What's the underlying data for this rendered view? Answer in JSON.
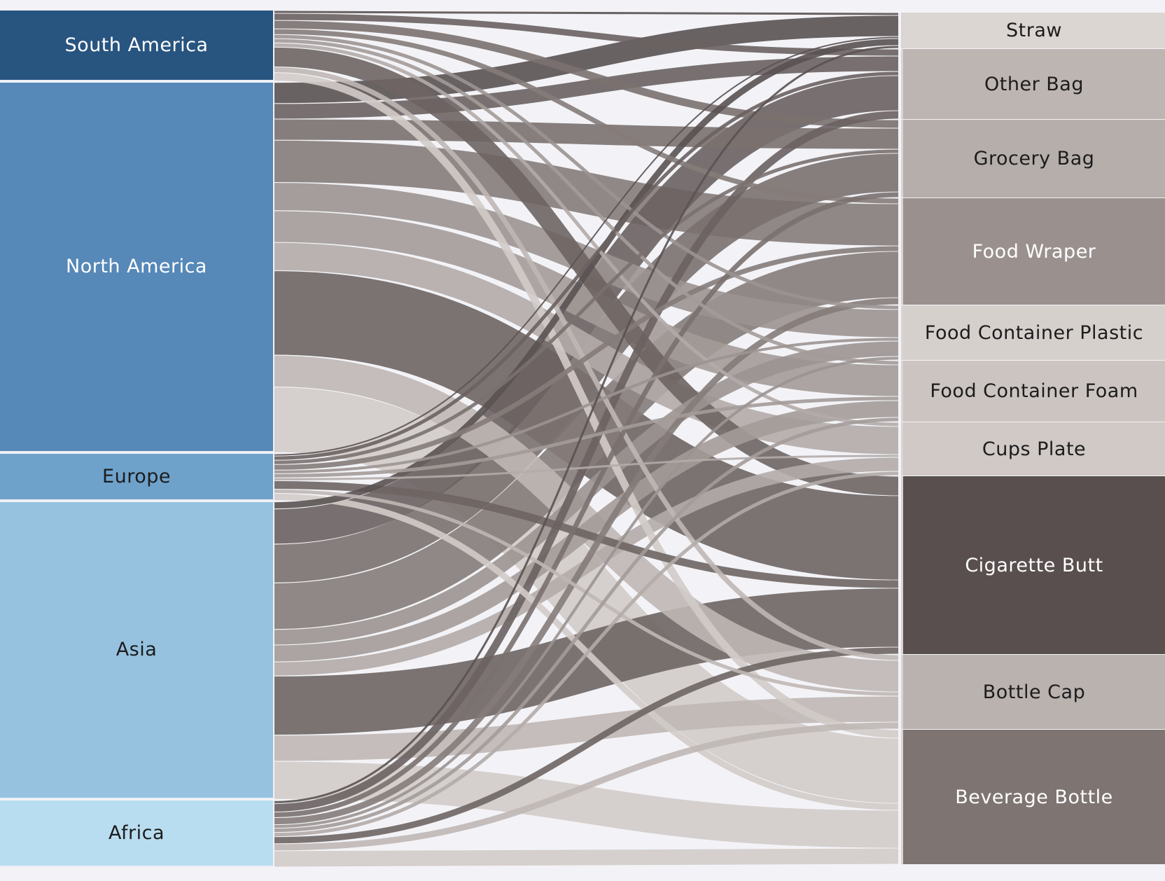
{
  "chart_data": {
    "type": "sankey",
    "sources": [
      {
        "name": "South America",
        "color": "#285480",
        "text_color": "#ffffff"
      },
      {
        "name": "North America",
        "color": "#5688b8",
        "text_color": "#ffffff"
      },
      {
        "name": "Europe",
        "color": "#6ea2cb",
        "text_color": "#1c1c1c"
      },
      {
        "name": "Asia",
        "color": "#96c2e0",
        "text_color": "#1c1c1c"
      },
      {
        "name": "Africa",
        "color": "#b9ddf0",
        "text_color": "#1c1c1c"
      }
    ],
    "targets": [
      {
        "name": "Straw",
        "color": "#dcd6d3",
        "text_color": "#1c1c1c",
        "link_color": "#5a5252"
      },
      {
        "name": "Other Bag",
        "color": "#bdb5b2",
        "text_color": "#1c1c1c",
        "link_color": "#6a6260"
      },
      {
        "name": "Grocery Bag",
        "color": "#b5aeab",
        "text_color": "#1c1c1c",
        "link_color": "#7a716f"
      },
      {
        "name": "Food Wraper",
        "color": "#9a918f",
        "text_color": "#ffffff",
        "link_color": "#857c79"
      },
      {
        "name": "Food Container Plastic",
        "color": "#d6d0cd",
        "text_color": "#1c1c1c",
        "link_color": "#9b9391"
      },
      {
        "name": "Food  Container Foam",
        "color": "#cbc4c1",
        "text_color": "#1c1c1c",
        "link_color": "#a39b98"
      },
      {
        "name": "Cups Plate",
        "color": "#d0c9c6",
        "text_color": "#1c1c1c",
        "link_color": "#b3aba8"
      },
      {
        "name": "Cigarette Butt",
        "color": "#594f4e",
        "text_color": "#ffffff",
        "link_color": "#6e6563"
      },
      {
        "name": "Bottle Cap",
        "color": "#bab2af",
        "text_color": "#1c1c1c",
        "link_color": "#bfb7b4"
      },
      {
        "name": "Beverage Bottle",
        "color": "#7e7471",
        "text_color": "#ffffff",
        "link_color": "#d2cbc8"
      }
    ],
    "flows": [
      [
        4,
        10,
        12,
        8,
        6,
        6,
        6,
        28,
        8,
        12
      ],
      [
        30,
        22,
        30,
        60,
        40,
        45,
        40,
        120,
        45,
        93
      ],
      [
        3,
        6,
        6,
        8,
        5,
        6,
        4,
        12,
        6,
        10
      ],
      [
        10,
        50,
        55,
        66,
        22,
        24,
        20,
        84,
        37,
        54
      ],
      [
        4,
        12,
        8,
        10,
        5,
        6,
        6,
        10,
        10,
        23
      ]
    ]
  }
}
